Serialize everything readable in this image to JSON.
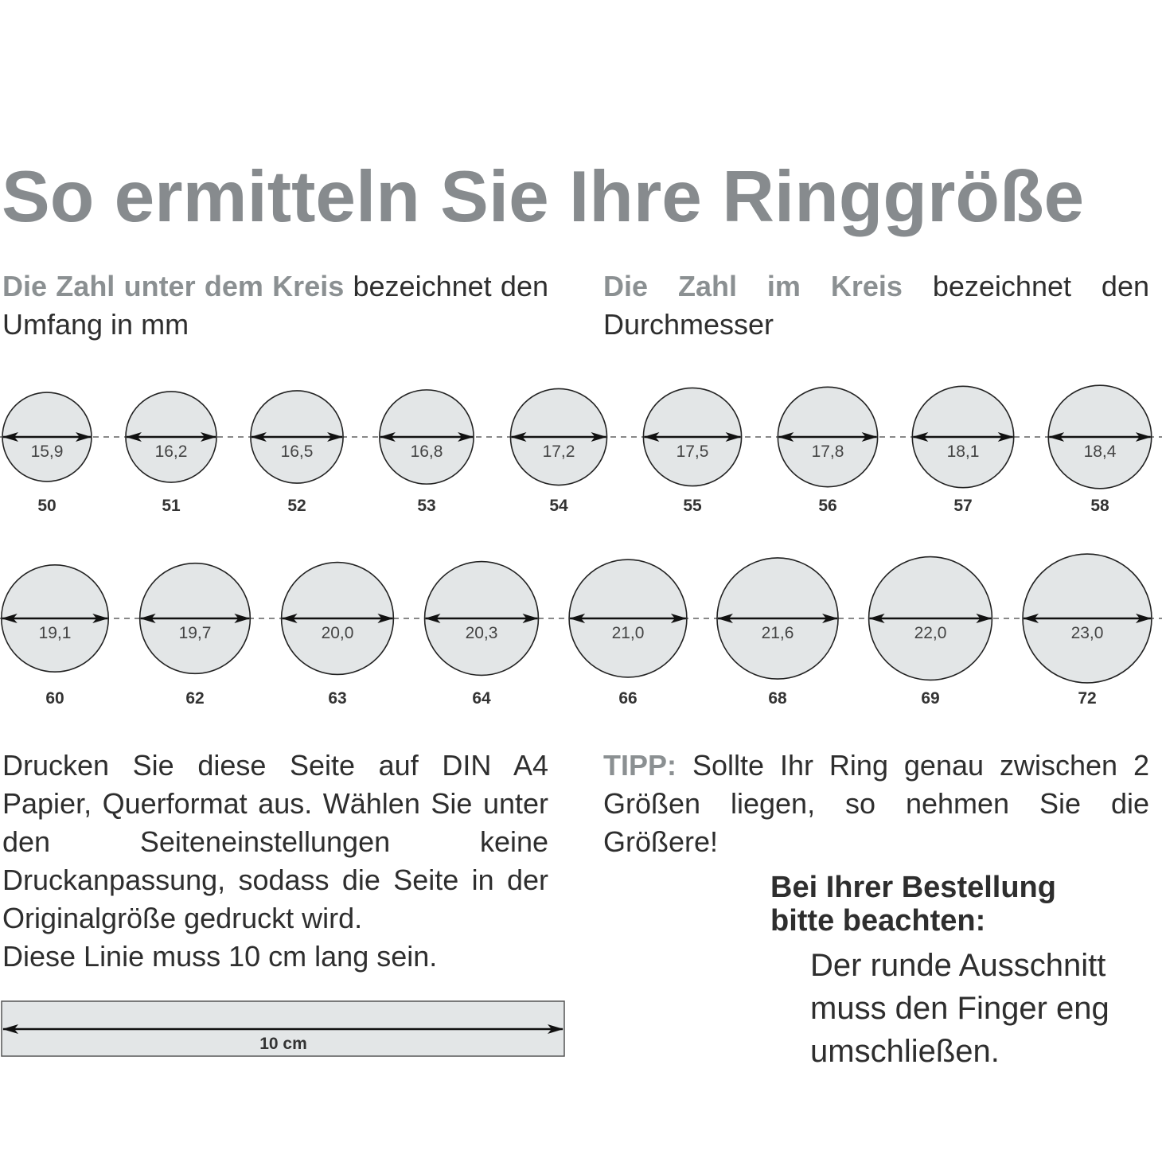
{
  "title": "So ermitteln Sie Ihre Ringgröße",
  "intro_left": {
    "highlight": "Die Zahl unter dem Kreis",
    "text": " bezeichnet den Umfang in mm"
  },
  "intro_right": {
    "highlight": "Die Zahl im Kreis",
    "text": " bezeichnet den Durchmesser"
  },
  "rings": {
    "row1": [
      {
        "diameter": "15,9",
        "size": "50"
      },
      {
        "diameter": "16,2",
        "size": "51"
      },
      {
        "diameter": "16,5",
        "size": "52"
      },
      {
        "diameter": "16,8",
        "size": "53"
      },
      {
        "diameter": "17,2",
        "size": "54"
      },
      {
        "diameter": "17,5",
        "size": "55"
      },
      {
        "diameter": "17,8",
        "size": "56"
      },
      {
        "diameter": "18,1",
        "size": "57"
      },
      {
        "diameter": "18,4",
        "size": "58"
      }
    ],
    "row2": [
      {
        "diameter": "19,1",
        "size": "60"
      },
      {
        "diameter": "19,7",
        "size": "62"
      },
      {
        "diameter": "20,0",
        "size": "63"
      },
      {
        "diameter": "20,3",
        "size": "64"
      },
      {
        "diameter": "21,0",
        "size": "66"
      },
      {
        "diameter": "21,6",
        "size": "68"
      },
      {
        "diameter": "22,0",
        "size": "69"
      },
      {
        "diameter": "23,0",
        "size": "72"
      }
    ]
  },
  "print_instructions": {
    "text": "Drucken Sie diese Seite auf DIN A4 Papier, Querformat aus. Wählen Sie unter den Seiteneinstellungen keine Druckanpassung, sodass die Seite in der Originalgröße gedruckt wird.",
    "line_note": "Diese Linie muss 10 cm lang sein."
  },
  "ruler_label": "10 cm",
  "tip": {
    "label": "TIPP:",
    "text": " Sollte Ihr Ring genau zwischen 2 Größen liegen, so nehmen Sie die Größere!"
  },
  "order_note": {
    "heading_line1": "Bei Ihrer Bestellung",
    "heading_line2": "bitte beachten:",
    "body_line1": "Der runde Ausschnitt",
    "body_line2": "muss den Finger eng",
    "body_line3": "umschließen."
  },
  "colors": {
    "heading_gray": "#878b8e",
    "circle_fill": "#e3e6e7",
    "text": "#2e2e2e"
  }
}
